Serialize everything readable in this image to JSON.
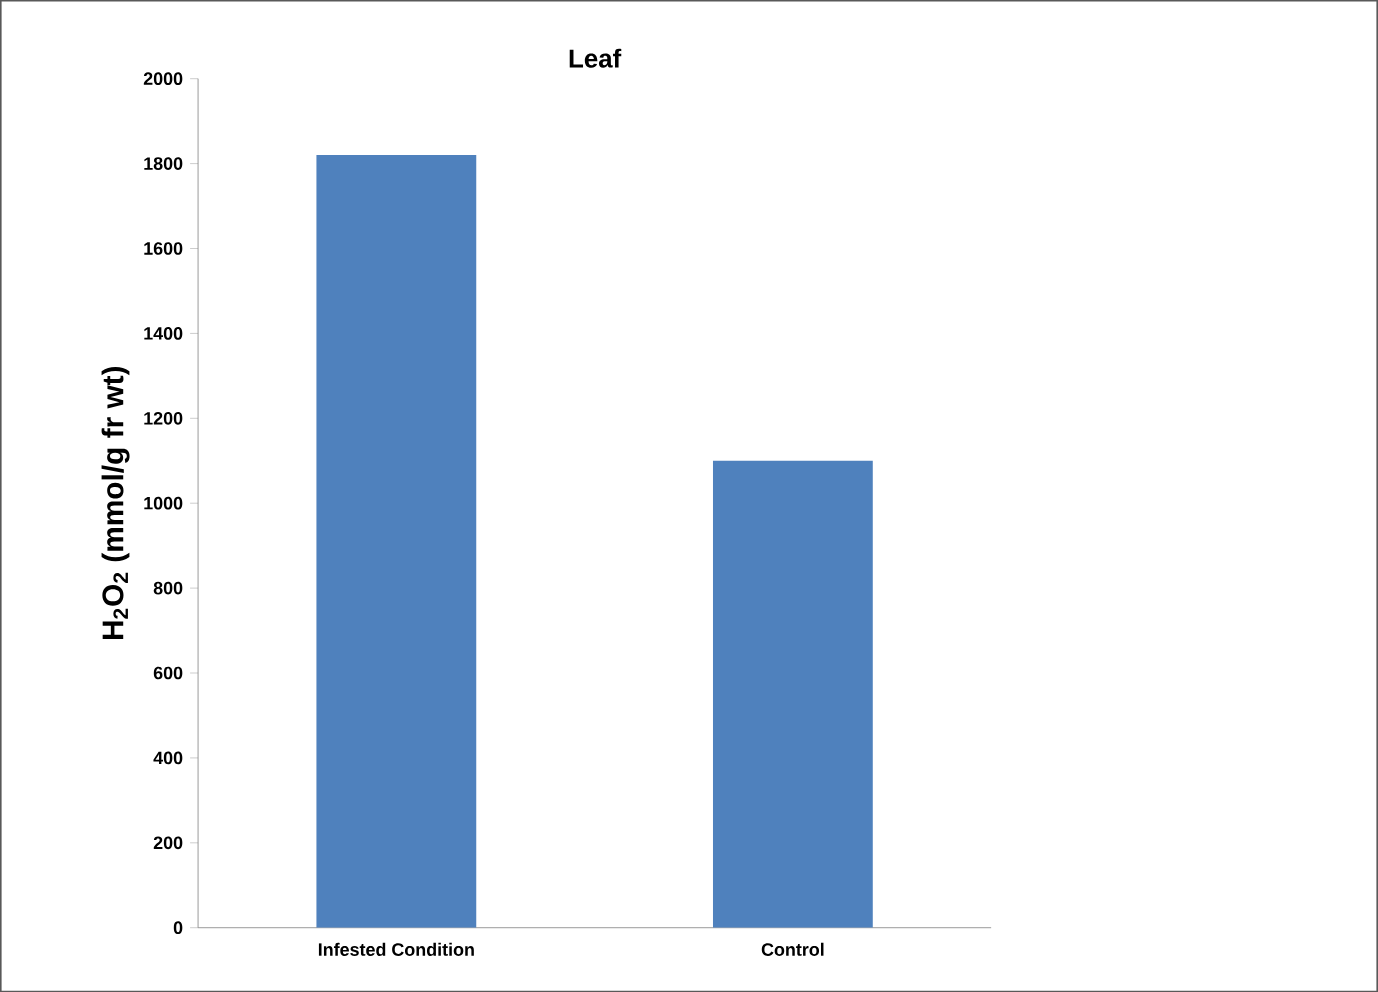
{
  "chart_data": {
    "type": "bar",
    "title": "Leaf",
    "ylabel": "H$_{2}$O$_{2}$ (mmol/g fr wt)",
    "categories": [
      "Infested Condition",
      "Control"
    ],
    "values": [
      1820,
      1100
    ],
    "color": "#4f81bd",
    "ylim": [
      0,
      2000
    ],
    "yticks": [
      0,
      200,
      400,
      600,
      800,
      1000,
      1200,
      1400,
      1600,
      1800,
      2000
    ],
    "grid": false
  }
}
